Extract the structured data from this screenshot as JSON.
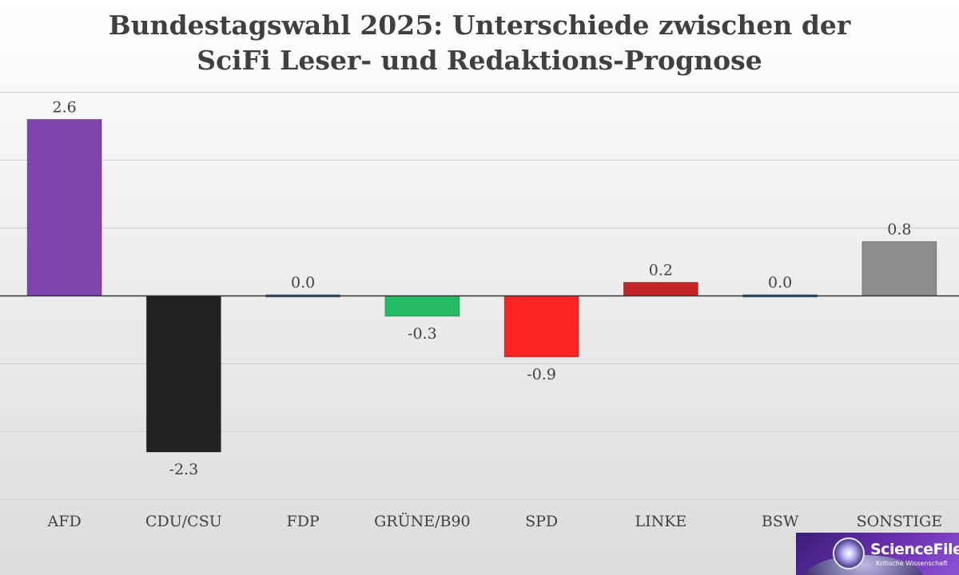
{
  "chart_data": {
    "type": "bar",
    "title_lines": [
      "Bundestagswahl 2025: Unterschiede zwischen der",
      "SciFi Leser- und Redaktions-Prognose"
    ],
    "categories": [
      "AFD",
      "CDU/CSU",
      "FDP",
      "GRÜNE/B90",
      "SPD",
      "LINKE",
      "BSW",
      "SONSTIGE"
    ],
    "values": [
      2.6,
      -2.3,
      0.0,
      -0.3,
      -0.9,
      0.2,
      0.0,
      0.8
    ],
    "value_labels": [
      "2.6",
      "-2.3",
      "0.0",
      "-0.3",
      "-0.9",
      "0.2",
      "0.0",
      "0.8"
    ],
    "colors": [
      "#7f44ad",
      "#222222",
      "#4a7fae",
      "#23bb63",
      "#fc2424",
      "#c42425",
      "#2f78b3",
      "#8c8c8c"
    ],
    "ylim": [
      -3,
      3
    ],
    "gridlines": [
      -3,
      -2,
      -1,
      0,
      1,
      2,
      3
    ],
    "xlabel": "",
    "ylabel": "",
    "grid": true,
    "legend": false
  },
  "logo": {
    "name": "ScienceFiles",
    "tagline": "Kritische Wissenschaft"
  }
}
